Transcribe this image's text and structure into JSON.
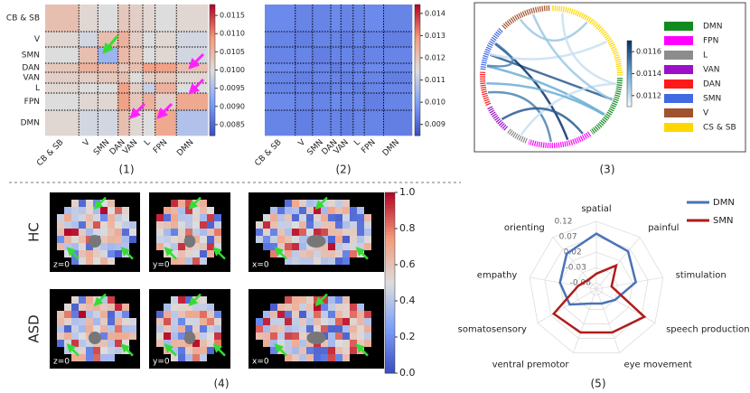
{
  "heatmap_1": {
    "caption": "(1)",
    "row_labels": [
      "CB & SB",
      "V",
      "SMN",
      "DAN",
      "VAN",
      "L",
      "FPN",
      "DMN"
    ],
    "col_labels": [
      "CB & SB",
      "V",
      "SMN",
      "DAN",
      "VAN",
      "L",
      "FPN",
      "DMN"
    ],
    "values": [
      [
        0.0104,
        0.0101,
        0.01,
        0.0103,
        0.0102,
        0.0101,
        0.01,
        0.0101
      ],
      [
        0.0101,
        0.0099,
        0.0104,
        0.0106,
        0.0102,
        0.01,
        0.0101,
        0.0099
      ],
      [
        0.01,
        0.0104,
        0.0094,
        0.0105,
        0.0103,
        0.01,
        0.0101,
        0.0099
      ],
      [
        0.0103,
        0.0106,
        0.0105,
        0.0103,
        0.0104,
        0.0108,
        0.0108,
        0.0104
      ],
      [
        0.0102,
        0.0102,
        0.0103,
        0.0104,
        0.01,
        0.0102,
        0.0103,
        0.0101
      ],
      [
        0.0101,
        0.01,
        0.01,
        0.0108,
        0.0102,
        0.0098,
        0.0106,
        0.01
      ],
      [
        0.01,
        0.0101,
        0.0101,
        0.0108,
        0.0103,
        0.0106,
        0.0102,
        0.0107
      ],
      [
        0.0101,
        0.0099,
        0.0099,
        0.0104,
        0.0101,
        0.01,
        0.0107,
        0.0096
      ]
    ],
    "colorbar": {
      "lim": [
        0.0082,
        0.0118
      ],
      "ticks": [
        0.0115,
        {
          "value": 0.011,
          "label": "0.0110"
        },
        0.0105,
        {
          "value": 0.01,
          "label": "0.0100"
        },
        0.0095,
        {
          "value": 0.009,
          "label": "0.0090"
        },
        0.0085
      ]
    }
  },
  "heatmap_2": {
    "caption": "(2)",
    "col_labels": [
      "CB & SB",
      "V",
      "SMN",
      "DAN",
      "VAN",
      "L",
      "FPN",
      "DMN"
    ],
    "values": [
      [
        0.0096,
        0.0095,
        0.0095,
        0.0096,
        0.0095,
        0.0095,
        0.0096,
        0.0095
      ],
      [
        0.0095,
        0.0094,
        0.0095,
        0.0095,
        0.0094,
        0.0095,
        0.0095,
        0.0094
      ],
      [
        0.0095,
        0.0095,
        0.0094,
        0.0095,
        0.0095,
        0.0094,
        0.0095,
        0.0095
      ],
      [
        0.0096,
        0.0095,
        0.0095,
        0.0094,
        0.0095,
        0.0095,
        0.0096,
        0.0095
      ],
      [
        0.0095,
        0.0094,
        0.0095,
        0.0095,
        0.0094,
        0.0095,
        0.0095,
        0.0094
      ],
      [
        0.0095,
        0.0095,
        0.0094,
        0.0095,
        0.0095,
        0.0094,
        0.0095,
        0.0095
      ],
      [
        0.0096,
        0.0095,
        0.0095,
        0.0096,
        0.0095,
        0.0095,
        0.0094,
        0.0095
      ],
      [
        0.0095,
        0.0094,
        0.0095,
        0.0095,
        0.0094,
        0.0095,
        0.0095,
        0.0094
      ]
    ],
    "colorbar": {
      "lim": [
        0.0085,
        0.0144
      ],
      "ticks": [
        0.014,
        0.013,
        0.012,
        0.011,
        {
          "value": 0.01,
          "label": "0.010"
        },
        0.009
      ]
    }
  },
  "chord": {
    "caption": "(3)",
    "networks": [
      {
        "name": "DMN",
        "color": "#138a1e"
      },
      {
        "name": "FPN",
        "color": "#ff00ff"
      },
      {
        "name": "L",
        "color": "#8c8c8c"
      },
      {
        "name": "VAN",
        "color": "#9b10c8"
      },
      {
        "name": "DAN",
        "color": "#ff1a1a"
      },
      {
        "name": "SMN",
        "color": "#4169e1"
      },
      {
        "name": "V",
        "color": "#a0522d"
      },
      {
        "name": "CS & SB",
        "color": "#ffd700"
      }
    ],
    "colorbar": {
      "lim": [
        0.0111,
        0.0117
      ],
      "ticks": [
        0.0116,
        0.0114,
        0.0112
      ]
    },
    "links": [
      {
        "source": "SMN",
        "target": "DMN",
        "value": 0.0116
      },
      {
        "source": "SMN",
        "target": "FPN",
        "value": 0.0117
      },
      {
        "source": "DAN",
        "target": "FPN",
        "value": 0.0115
      },
      {
        "source": "V",
        "target": "CS & SB",
        "value": 0.0113
      },
      {
        "source": "SMN",
        "target": "DMN",
        "value": 0.0114
      },
      {
        "source": "L",
        "target": "DMN",
        "value": 0.0112
      },
      {
        "source": "VAN",
        "target": "FPN",
        "value": 0.0116
      },
      {
        "source": "SMN",
        "target": "CS & SB",
        "value": 0.0112
      },
      {
        "source": "V",
        "target": "DMN",
        "value": 0.0113
      },
      {
        "source": "DAN",
        "target": "DMN",
        "value": 0.0114
      },
      {
        "source": "SMN",
        "target": "SMN",
        "value": 0.0115
      },
      {
        "source": "CS & SB",
        "target": "DMN",
        "value": 0.0112
      }
    ]
  },
  "brain_maps": {
    "caption": "(4)",
    "rows": [
      "HC",
      "ASD"
    ],
    "slices": [
      "z=0",
      "y=0",
      "x=0"
    ],
    "colorbar": {
      "lim": [
        0,
        1
      ],
      "ticks": [
        {
          "value": 1,
          "label": "1.0"
        },
        0.8,
        0.6,
        0.4,
        0.2,
        {
          "value": 0,
          "label": "0.0"
        }
      ]
    }
  },
  "radar": {
    "type": "radar",
    "caption": "(5)",
    "categories": [
      "spatial",
      "painful",
      "stimulation",
      "speech production",
      "eye movement",
      "ventral premotor",
      "somatosensory",
      "empathy",
      "orienting"
    ],
    "rlim": [
      -0.1,
      0.12
    ],
    "rticks": [
      0.12,
      0.07,
      0.02,
      -0.03,
      -0.08
    ],
    "series": [
      {
        "name": "DMN",
        "color": "#4a72b8",
        "values": [
          0.08,
          0.06,
          0.03,
          -0.03,
          -0.05,
          -0.05,
          0.0,
          0.02,
          0.05
        ]
      },
      {
        "name": "SMN",
        "color": "#b01c1c",
        "values": [
          -0.05,
          0.0,
          -0.05,
          0.08,
          0.05,
          0.05,
          0.06,
          -0.04,
          -0.06
        ]
      }
    ]
  }
}
